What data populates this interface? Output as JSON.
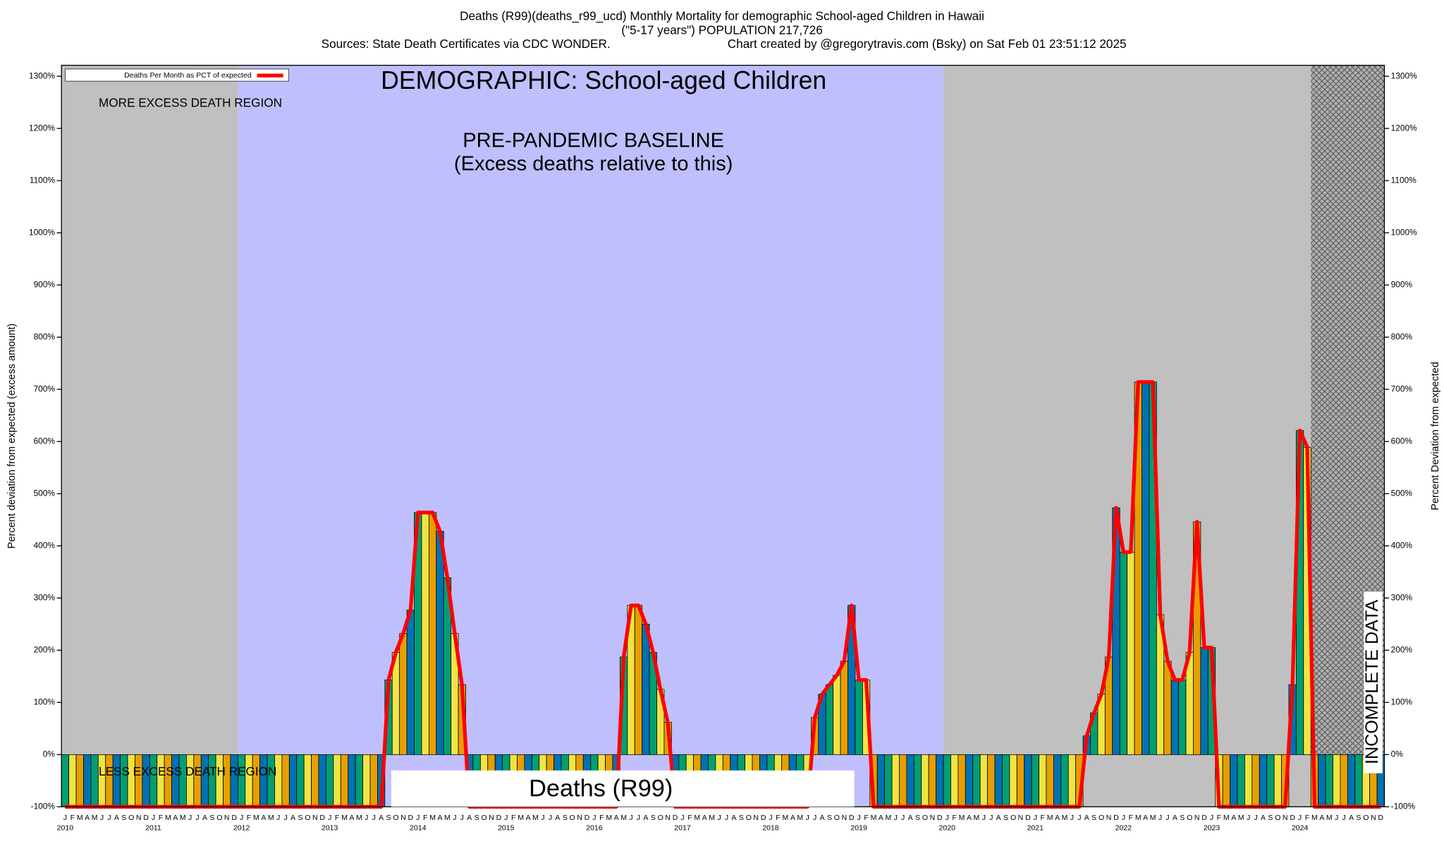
{
  "chart_data": {
    "type": "bar",
    "title": "Deaths (R99)(deaths_r99_ucd) Monthly Mortality for demographic School-aged Children in Hawaii",
    "subtitle": "(\"5-17 years\") POPULATION 217,726",
    "source": "Sources: State Death Certificates via CDC WONDER.",
    "credit": "Chart created by @gregorytravis.com (Bsky) on Sat Feb 01 23:51:12 2025",
    "y_label": "Percent deviation from expected (excess amount)",
    "y2_label": "Percent Deviation from expected",
    "annotations": {
      "demographic": "DEMOGRAPHIC: School-aged Children",
      "baseline_title": "PRE-PANDEMIC BASELINE",
      "baseline_subtitle": "(Excess deaths relative to this)",
      "more_region": "MORE EXCESS DEATH REGION",
      "less_region": "LESS EXCESS DEATH REGION",
      "incomplete": "INCOMPLETE DATA",
      "series_label": "Deaths (R99)"
    },
    "categories": [
      "J",
      "F",
      "M",
      "A",
      "M",
      "J",
      "J",
      "A",
      "S",
      "O",
      "N",
      "D",
      "J",
      "F",
      "M",
      "A",
      "M",
      "J",
      "J",
      "A",
      "S",
      "O",
      "N",
      "D",
      "J",
      "F",
      "M",
      "A",
      "M",
      "J",
      "J",
      "A",
      "S",
      "O",
      "N",
      "D",
      "J",
      "F",
      "M",
      "A",
      "M",
      "J",
      "J",
      "A",
      "S",
      "O",
      "N",
      "D",
      "J",
      "F",
      "M",
      "A",
      "M",
      "J",
      "J",
      "A",
      "S",
      "O",
      "N",
      "D",
      "J",
      "F",
      "M",
      "A",
      "M",
      "J",
      "J",
      "A",
      "S",
      "O",
      "N",
      "D",
      "J",
      "F",
      "M",
      "A",
      "M",
      "J",
      "J",
      "A",
      "S",
      "O",
      "N",
      "D",
      "J",
      "F",
      "M",
      "A",
      "M",
      "J",
      "J",
      "A",
      "S",
      "O",
      "N",
      "D",
      "J",
      "F",
      "M",
      "A",
      "M",
      "J",
      "J",
      "A",
      "S",
      "O",
      "N",
      "D",
      "J",
      "F",
      "M",
      "A",
      "M",
      "J",
      "J",
      "A",
      "S",
      "O",
      "N",
      "D",
      "J",
      "F",
      "M",
      "A",
      "M",
      "J",
      "J",
      "A",
      "S",
      "O",
      "N",
      "D",
      "J",
      "F",
      "M",
      "A",
      "M",
      "J",
      "J",
      "A",
      "S",
      "O",
      "N",
      "D",
      "J",
      "F",
      "M",
      "A",
      "M",
      "J",
      "J",
      "A",
      "S",
      "O",
      "N",
      "D",
      "J",
      "F",
      "M",
      "A",
      "M",
      "J",
      "J",
      "A",
      "S",
      "O",
      "N",
      "D",
      "J",
      "F",
      "M",
      "A",
      "M",
      "J",
      "J",
      "A",
      "S",
      "O",
      "N",
      "D"
    ],
    "years": [
      "2010",
      "2011",
      "2012",
      "2013",
      "2014",
      "2015",
      "2016",
      "2017",
      "2018",
      "2019",
      "2020",
      "2021",
      "2022",
      "2023",
      "2024"
    ],
    "series": [
      {
        "name": "Deaths Per Month as PCT of expected",
        "color": "#ff0000",
        "values": [
          -100,
          -100,
          -100,
          -100,
          -100,
          -100,
          -100,
          -100,
          -100,
          -100,
          -100,
          -100,
          -100,
          -100,
          -100,
          -100,
          -100,
          -100,
          -100,
          -100,
          -100,
          -100,
          -100,
          -100,
          -100,
          -100,
          -100,
          -100,
          -100,
          -100,
          -100,
          -100,
          -100,
          -100,
          -100,
          -100,
          -100,
          -100,
          -100,
          -100,
          -100,
          -100,
          -100,
          -100,
          143,
          196,
          232,
          277,
          464,
          464,
          464,
          428,
          339,
          232,
          134,
          -100,
          -100,
          -100,
          -100,
          -100,
          -100,
          -100,
          -100,
          -100,
          -100,
          -100,
          -100,
          -100,
          -100,
          -100,
          -100,
          -100,
          -100,
          -100,
          -100,
          -100,
          187,
          286,
          286,
          250,
          196,
          125,
          62,
          -100,
          -100,
          -100,
          -100,
          -100,
          -100,
          -100,
          -100,
          -100,
          -100,
          -100,
          -100,
          -100,
          -100,
          -100,
          -100,
          -100,
          -100,
          -100,
          71,
          116,
          134,
          152,
          179,
          286,
          143,
          143,
          -100,
          -100,
          -100,
          -100,
          -100,
          -100,
          -100,
          -100,
          -100,
          -100,
          -100,
          -100,
          -100,
          -100,
          -100,
          -100,
          -100,
          -100,
          -100,
          -100,
          -100,
          -100,
          -100,
          -100,
          -100,
          -100,
          -100,
          -100,
          -100,
          36,
          80,
          116,
          187,
          473,
          388,
          388,
          714,
          714,
          714,
          268,
          179,
          143,
          143,
          196,
          446,
          205,
          205,
          -100,
          -100,
          -100,
          -100,
          -100,
          -100,
          -100,
          -100,
          -100,
          -100,
          134,
          621,
          589,
          -100,
          -100,
          -100,
          -100,
          -100,
          -100,
          -100,
          -100,
          -100,
          -100
        ]
      }
    ],
    "bar_colors": [
      "#009e73",
      "#f0e442",
      "#e69f00",
      "#0072b2"
    ],
    "ylim": [
      -100,
      1321
    ],
    "yticks": [
      {
        "value": -100,
        "label": "-100%"
      },
      {
        "value": 0,
        "label": "0%"
      },
      {
        "value": 100,
        "label": "100%"
      },
      {
        "value": 200,
        "label": "200%"
      },
      {
        "value": 300,
        "label": "300%"
      },
      {
        "value": 400,
        "label": "400%"
      },
      {
        "value": 500,
        "label": "500%"
      },
      {
        "value": 600,
        "label": "600%"
      },
      {
        "value": 700,
        "label": "700%"
      },
      {
        "value": 800,
        "label": "800%"
      },
      {
        "value": 900,
        "label": "900%"
      },
      {
        "value": 1000,
        "label": "1000%"
      },
      {
        "value": 1100,
        "label": "1100%"
      },
      {
        "value": 1200,
        "label": "1200%"
      },
      {
        "value": 1300,
        "label": "1300%"
      }
    ],
    "legend": "upper left"
  }
}
